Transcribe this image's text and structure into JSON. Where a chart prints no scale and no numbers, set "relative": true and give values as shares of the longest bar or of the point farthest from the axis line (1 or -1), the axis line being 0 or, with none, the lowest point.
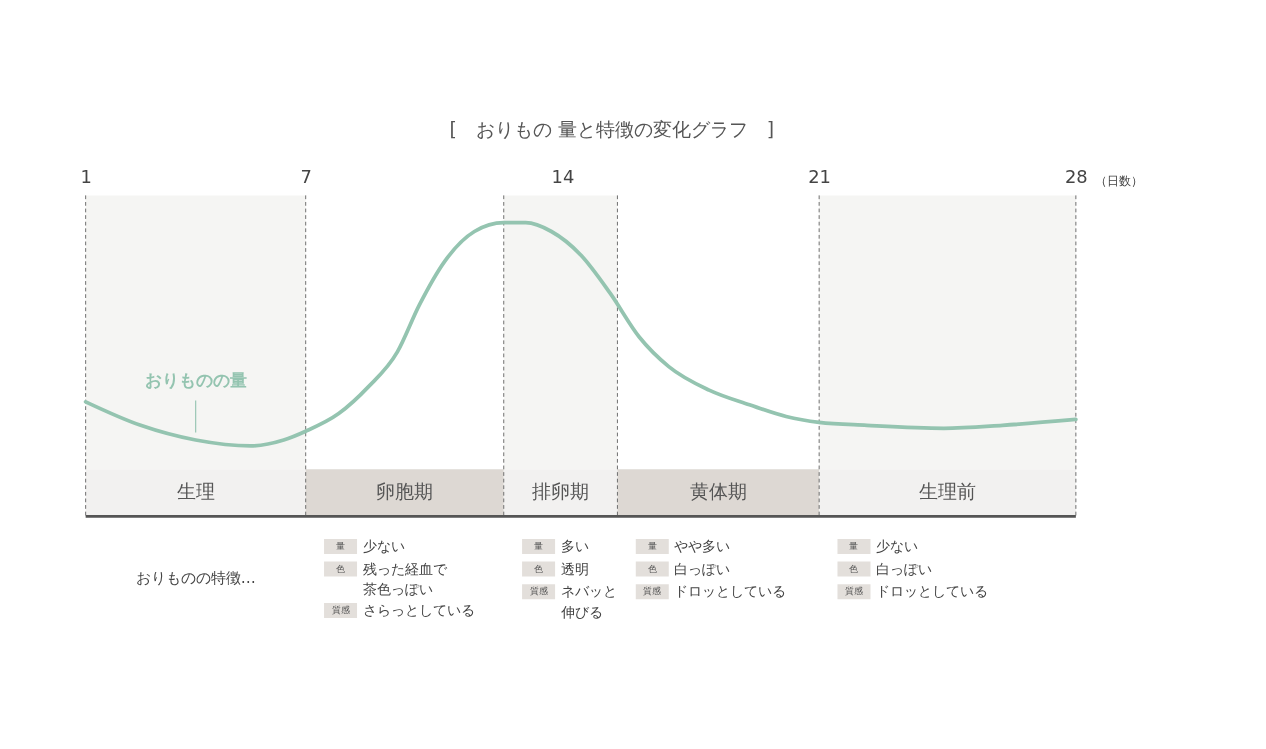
{
  "chart_data": {
    "type": "line",
    "title": "[　おりもの 量と特徴の変化グラフ　]",
    "xlabel": "（日数）",
    "relative": true,
    "color": "#94c4b0",
    "xlim": [
      1,
      28
    ],
    "xticks": [
      1,
      7,
      14,
      21,
      28
    ],
    "x": [
      1,
      2.5,
      4,
      5.5,
      6.4,
      7,
      7.9,
      8.7,
      9.5,
      10.1,
      10.8,
      11.6,
      12.4,
      13,
      13.7,
      14.5,
      15.3,
      16.1,
      16.9,
      18,
      19.1,
      20.1,
      21,
      22.3,
      24.4,
      26,
      28
    ],
    "values": [
      0.39,
      0.31,
      0.26,
      0.24,
      0.26,
      0.29,
      0.35,
      0.44,
      0.56,
      0.72,
      0.87,
      0.97,
      1.0,
      1.0,
      0.97,
      0.89,
      0.76,
      0.61,
      0.51,
      0.43,
      0.38,
      0.34,
      0.32,
      0.31,
      0.3,
      0.31,
      0.33
    ],
    "bands": [
      {
        "axis": "x",
        "from": 1,
        "to": 7,
        "color": "#f5f5f3"
      },
      {
        "axis": "x",
        "from": 12.4,
        "to": 15.5,
        "color": "#f5f5f3"
      },
      {
        "axis": "x",
        "from": 21,
        "to": 28,
        "color": "#f5f5f3"
      },
      {
        "axis": "x",
        "from": 1,
        "to": 7,
        "label": "生理",
        "color": "#f2f1f0"
      },
      {
        "axis": "x",
        "from": 7,
        "to": 12.4,
        "label": "卵胞期",
        "color": "#ddd8d3"
      },
      {
        "axis": "x",
        "from": 12.4,
        "to": 15.5,
        "label": "排卵期",
        "color": "#f2f1f0"
      },
      {
        "axis": "x",
        "from": 15.5,
        "to": 21,
        "label": "黄体期",
        "color": "#ddd8d3"
      },
      {
        "axis": "x",
        "from": 21,
        "to": 28,
        "label": "生理前",
        "color": "#f2f1f0"
      }
    ],
    "annotations": [
      {
        "text": "おりものの量",
        "x": 4,
        "y": 0.26
      },
      "おりものの特徴…",
      "量 少ない",
      "色 残った経血で",
      "茶色っぽい",
      "質感 さらっとしている",
      "量 多い",
      "色 透明",
      "質感 ネバッと",
      "伸びる",
      "量 やや多い",
      "色 白っぽい",
      "質感 ドロッとしている",
      "量 少ない",
      "色 白っぽい",
      "質感 ドロッとしている"
    ]
  }
}
